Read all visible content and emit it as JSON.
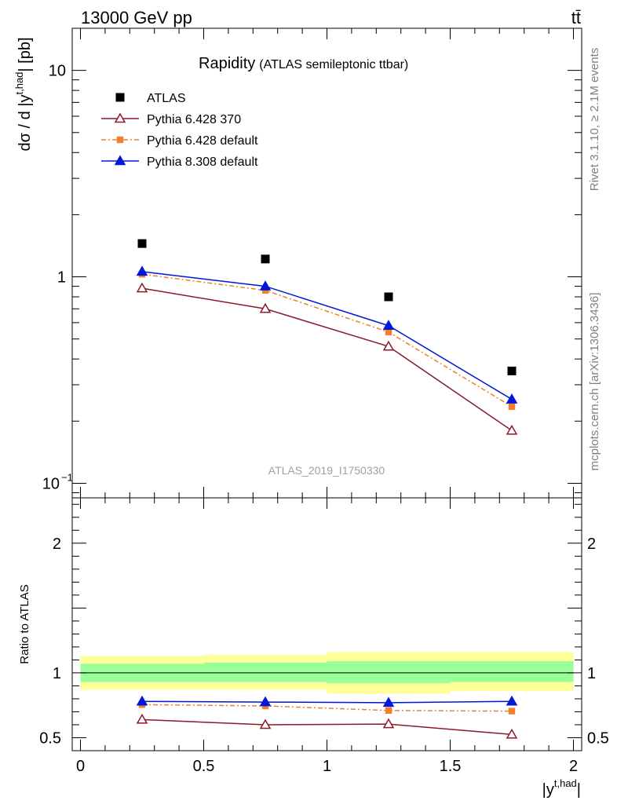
{
  "header": {
    "energy_label": "13000 GeV pp",
    "process_label": "tt̄"
  },
  "side_labels": {
    "rivet": "Rivet 3.1.10, ≥ 2.1M events",
    "source": "mcplots.cern.ch [arXiv:1306.3436]"
  },
  "chart_data": {
    "type": "scatter",
    "title": "Rapidity",
    "subtitle": "(ATLAS semileptonic ttbar)",
    "watermark": "ATLAS_2019_I1750330",
    "xlabel": "|y^{t,had}|",
    "ylabel": "dσ / d |y^{t,had}| [pb]",
    "ratio_ylabel": "Ratio to ATLAS",
    "xlim": [
      0,
      2
    ],
    "ylim": [
      0.085,
      16
    ],
    "ylog": true,
    "ratio_ylim": [
      0.4,
      2.35
    ],
    "legend_position": "top-left",
    "x": [
      0.25,
      0.75,
      1.25,
      1.75
    ],
    "x_ticks": [
      {
        "v": 0,
        "label": "0"
      },
      {
        "v": 0.5,
        "label": "0.5"
      },
      {
        "v": 1,
        "label": "1"
      },
      {
        "v": 1.5,
        "label": "1.5"
      },
      {
        "v": 2,
        "label": "2"
      }
    ],
    "y_ticks": [
      {
        "v": 0.1,
        "label": "10",
        "sup": "−1"
      },
      {
        "v": 1,
        "label": "1",
        "sup": ""
      },
      {
        "v": 10,
        "label": "10",
        "sup": ""
      }
    ],
    "ratio_ticks": [
      {
        "v": 0.5,
        "label": "0.5"
      },
      {
        "v": 1,
        "label": "1"
      },
      {
        "v": 2,
        "label": "2"
      }
    ],
    "data_series": {
      "name": "ATLAS",
      "values": [
        1.45,
        1.22,
        0.8,
        0.35
      ]
    },
    "bands": {
      "inner": [
        {
          "x0": 0,
          "x1": 0.5,
          "lo": 0.93,
          "hi": 1.07
        },
        {
          "x0": 0.5,
          "x1": 1,
          "lo": 0.93,
          "hi": 1.08
        },
        {
          "x0": 1,
          "x1": 1.5,
          "lo": 0.92,
          "hi": 1.09
        },
        {
          "x0": 1.5,
          "x1": 2,
          "lo": 0.93,
          "hi": 1.09
        }
      ],
      "outer": [
        {
          "x0": 0,
          "x1": 0.5,
          "lo": 0.87,
          "hi": 1.13
        },
        {
          "x0": 0.5,
          "x1": 1,
          "lo": 0.87,
          "hi": 1.14
        },
        {
          "x0": 1,
          "x1": 1.5,
          "lo": 0.84,
          "hi": 1.16
        },
        {
          "x0": 1.5,
          "x1": 2,
          "lo": 0.86,
          "hi": 1.16
        }
      ],
      "inner_color": "#99ff99",
      "outer_color": "#ffff99"
    },
    "series": [
      {
        "name": "Pythia 6.428 370",
        "color": "#8b1a2a",
        "marker": "open-triangle",
        "dashed": false,
        "values": [
          0.88,
          0.7,
          0.46,
          0.18
        ],
        "ratio": [
          0.64,
          0.6,
          0.605,
          0.525
        ],
        "ratio_err": [
          0,
          0,
          0,
          0.02
        ]
      },
      {
        "name": "Pythia 6.428 default",
        "color": "#f08030",
        "marker": "filled-square",
        "dashed": true,
        "values": [
          1.03,
          0.86,
          0.54,
          0.235
        ],
        "ratio": [
          0.755,
          0.745,
          0.71,
          0.705
        ],
        "ratio_err": [
          0,
          0,
          0,
          0.02
        ]
      },
      {
        "name": "Pythia 8.308 default",
        "color": "#0018d8",
        "marker": "filled-triangle",
        "dashed": false,
        "values": [
          1.06,
          0.9,
          0.58,
          0.255
        ],
        "ratio": [
          0.78,
          0.775,
          0.77,
          0.78
        ],
        "ratio_err": [
          0,
          0,
          0.015,
          0.02
        ]
      }
    ]
  }
}
